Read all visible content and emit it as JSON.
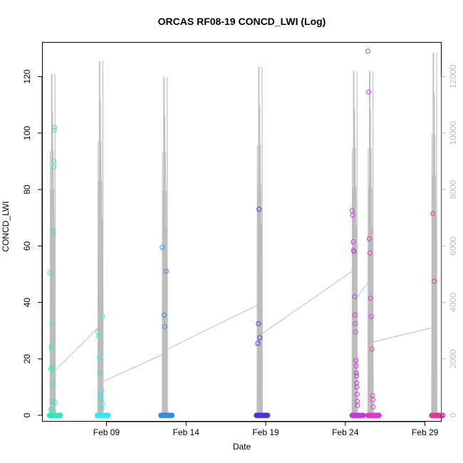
{
  "chart_data": {
    "type": "scatter",
    "title": "ORCAS RF08-19 CONCD_LWI (Log)",
    "xlabel": "Date",
    "ylabel": "CONCD_LWI",
    "x_axis": {
      "type": "date",
      "range": [
        "2016-02-05",
        "2016-03-01"
      ],
      "ticks": [
        {
          "value": "2016-02-09",
          "label": "Feb 09"
        },
        {
          "value": "2016-02-14",
          "label": "Feb 14"
        },
        {
          "value": "2016-02-19",
          "label": "Feb 19"
        },
        {
          "value": "2016-02-24",
          "label": "Feb 24"
        },
        {
          "value": "2016-02-29",
          "label": "Feb 29"
        }
      ]
    },
    "y_axis": {
      "range": [
        -2,
        132
      ],
      "ticks": [
        0,
        20,
        40,
        60,
        80,
        100,
        120
      ]
    },
    "y2_axis": {
      "range": [
        -200,
        13200
      ],
      "ticks": [
        0,
        2000,
        4000,
        6000,
        8000,
        10000,
        12000
      ],
      "color": "#bdbdbd"
    },
    "grid": false,
    "legend": "none",
    "altitude_trace": {
      "color": "#bdbdbd",
      "flights": [
        {
          "start": "2016-02-05 11:00",
          "end": "2016-02-05 19:00",
          "peak": 12100,
          "gaps": [
            3400,
            1600
          ]
        },
        {
          "start": "2016-02-08 11:00",
          "end": "2016-02-08 19:00",
          "peak": 12550,
          "gaps": [
            3100,
            1200
          ]
        },
        {
          "start": "2016-02-12 12:00",
          "end": "2016-02-12 20:00",
          "peak": 12000,
          "gaps": [
            2150,
            2350
          ]
        },
        {
          "start": "2016-02-18 11:00",
          "end": "2016-02-18 19:00",
          "peak": 12350,
          "gaps": [
            3900,
            2900
          ]
        },
        {
          "start": "2016-02-24 10:00",
          "end": "2016-02-24 18:00",
          "peak": 12200,
          "gaps": [
            5100,
            4200
          ]
        },
        {
          "start": "2016-02-25 10:00",
          "end": "2016-02-25 18:00",
          "peak": 12200,
          "gaps": [
            4700,
            2600
          ]
        },
        {
          "start": "2016-02-29 10:00",
          "end": "2016-02-29 18:00",
          "peak": 12850,
          "gaps": [
            3100,
            1000
          ]
        }
      ]
    },
    "series": [
      {
        "date": "2016-02-05",
        "color": "#33e8b8",
        "points": [
          {
            "x": "2016-02-05 11:00",
            "y": 50.5
          },
          {
            "x": "2016-02-05 12:30",
            "y": 16.5
          },
          {
            "x": "2016-02-05 13:00",
            "y": 24.5
          },
          {
            "x": "2016-02-05 13:30",
            "y": 23.5
          },
          {
            "x": "2016-02-05 14:00",
            "y": 32.5
          },
          {
            "x": "2016-02-05 14:30",
            "y": 17.0
          },
          {
            "x": "2016-02-05 15:00",
            "y": 11.0
          },
          {
            "x": "2016-02-05 15:30",
            "y": 5.0
          },
          {
            "x": "2016-02-05 16:00",
            "y": 65.0
          },
          {
            "x": "2016-02-05 16:30",
            "y": 88.0
          },
          {
            "x": "2016-02-05 17:00",
            "y": 90.0
          },
          {
            "x": "2016-02-05 17:30",
            "y": 101.0
          },
          {
            "x": "2016-02-05 18:00",
            "y": 102.0
          },
          {
            "x": "2016-02-05 18:30",
            "y": 4.5
          },
          {
            "x": "2016-02-05 12:00",
            "y": 2.0
          },
          {
            "x": "2016-02-05 15:45",
            "y": 1.2
          }
        ]
      },
      {
        "date": "2016-02-08",
        "color": "#33e8e8",
        "points": [
          {
            "x": "2016-02-08 11:00",
            "y": 29.5
          },
          {
            "x": "2016-02-08 12:00",
            "y": 28.0
          },
          {
            "x": "2016-02-08 13:00",
            "y": 20.5
          },
          {
            "x": "2016-02-08 14:00",
            "y": 15.0
          },
          {
            "x": "2016-02-08 15:00",
            "y": 7.0
          },
          {
            "x": "2016-02-08 16:00",
            "y": 5.5
          },
          {
            "x": "2016-02-08 17:00",
            "y": 8.5
          },
          {
            "x": "2016-02-08 18:00",
            "y": 35.0
          },
          {
            "x": "2016-02-08 18:30",
            "y": 4.0
          },
          {
            "x": "2016-02-08 16:30",
            "y": 2.5
          }
        ]
      },
      {
        "date": "2016-02-12",
        "color": "#3388ee",
        "points": [
          {
            "x": "2016-02-12 12:00",
            "y": 59.5
          },
          {
            "x": "2016-02-12 15:00",
            "y": 35.5
          },
          {
            "x": "2016-02-12 16:00",
            "y": 31.5
          },
          {
            "x": "2016-02-12 18:00",
            "y": 51.0
          }
        ]
      },
      {
        "date": "2016-02-18",
        "color": "#4433e8",
        "points": [
          {
            "x": "2016-02-18 14:00",
            "y": 73.0
          },
          {
            "x": "2016-02-18 13:00",
            "y": 32.5
          },
          {
            "x": "2016-02-18 15:00",
            "y": 27.5
          },
          {
            "x": "2016-02-18 12:00",
            "y": 25.5
          }
        ]
      },
      {
        "date": "2016-02-24",
        "color": "#cc33e8",
        "points": [
          {
            "x": "2016-02-24 10:00",
            "y": 72.5
          },
          {
            "x": "2016-02-24 11:00",
            "y": 71.0
          },
          {
            "x": "2016-02-24 12:00",
            "y": 61.5
          },
          {
            "x": "2016-02-24 12:30",
            "y": 58.5
          },
          {
            "x": "2016-02-24 13:00",
            "y": 58.0
          },
          {
            "x": "2016-02-24 14:00",
            "y": 42.0
          },
          {
            "x": "2016-02-24 14:30",
            "y": 35.5
          },
          {
            "x": "2016-02-24 15:00",
            "y": 32.5
          },
          {
            "x": "2016-02-24 15:30",
            "y": 29.5
          },
          {
            "x": "2016-02-24 16:00",
            "y": 19.5
          },
          {
            "x": "2016-02-24 16:30",
            "y": 17.5
          },
          {
            "x": "2016-02-24 16:45",
            "y": 15.0
          },
          {
            "x": "2016-02-24 17:00",
            "y": 14.0
          },
          {
            "x": "2016-02-24 17:15",
            "y": 11.5
          },
          {
            "x": "2016-02-24 17:30",
            "y": 10.0
          },
          {
            "x": "2016-02-24 17:45",
            "y": 7.5
          },
          {
            "x": "2016-02-24 18:00",
            "y": 5.0
          },
          {
            "x": "2016-02-24 18:15",
            "y": 3.5
          }
        ]
      },
      {
        "date": "2016-02-25",
        "color": "#e833cc",
        "points": [
          {
            "x": "2016-02-25 10:00",
            "y": 129.0
          },
          {
            "x": "2016-02-25 11:00",
            "y": 114.5
          },
          {
            "x": "2016-02-25 12:00",
            "y": 62.5
          },
          {
            "x": "2016-02-25 13:00",
            "y": 57.5
          },
          {
            "x": "2016-02-25 14:00",
            "y": 41.5
          },
          {
            "x": "2016-02-25 15:00",
            "y": 35.0
          },
          {
            "x": "2016-02-25 16:00",
            "y": 23.5
          },
          {
            "x": "2016-02-25 17:00",
            "y": 7.0
          },
          {
            "x": "2016-02-25 17:30",
            "y": 5.5
          },
          {
            "x": "2016-02-25 18:00",
            "y": 3.0
          }
        ]
      },
      {
        "date": "2016-02-29",
        "color": "#e83399",
        "points": [
          {
            "x": "2016-02-29 12:00",
            "y": 71.5
          },
          {
            "x": "2016-02-29 14:00",
            "y": 47.5
          }
        ]
      }
    ]
  }
}
